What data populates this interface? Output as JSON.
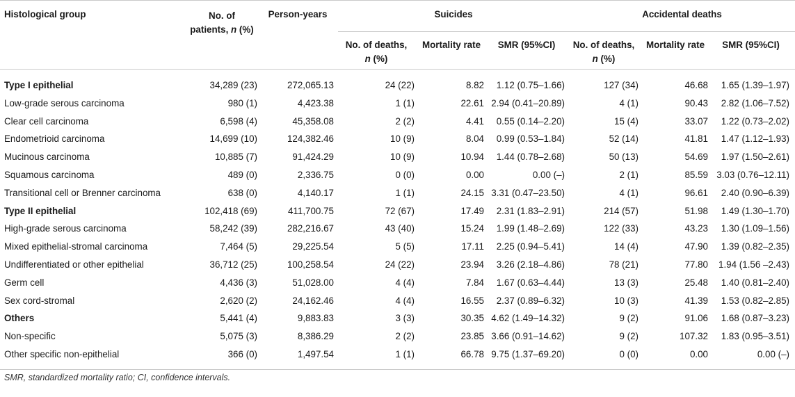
{
  "headers": {
    "group": "Histological group",
    "patients_line1": "No. of",
    "patients_line2a": "patients, ",
    "patients_line2b": "n",
    "patients_line2c": " (%)",
    "person_years": "Person-years",
    "suicides": "Suicides",
    "accidental": "Accidental deaths",
    "deaths_line1": "No. of deaths,",
    "deaths_line2a": "n",
    "deaths_line2b": " (%)",
    "rate": "Mortality rate",
    "smr": "SMR (95%CI)"
  },
  "rows": [
    {
      "group": "Type I epithelial",
      "bold": true,
      "patients": "34,289 (23)",
      "person_years": "272,065.13",
      "s_deaths": "24 (22)",
      "s_rate": "8.82",
      "s_smr": "1.12 (0.75–1.66)",
      "a_deaths": "127 (34)",
      "a_rate": "46.68",
      "a_smr": "1.65 (1.39–1.97)"
    },
    {
      "group": "Low-grade serous carcinoma",
      "bold": false,
      "patients": "980 (1)",
      "person_years": "4,423.38",
      "s_deaths": "1 (1)",
      "s_rate": "22.61",
      "s_smr": "2.94 (0.41–20.89)",
      "a_deaths": "4 (1)",
      "a_rate": "90.43",
      "a_smr": "2.82 (1.06–7.52)"
    },
    {
      "group": "Clear cell carcinoma",
      "bold": false,
      "patients": "6,598 (4)",
      "person_years": "45,358.08",
      "s_deaths": "2 (2)",
      "s_rate": "4.41",
      "s_smr": "0.55 (0.14–2.20)",
      "a_deaths": "15 (4)",
      "a_rate": "33.07",
      "a_smr": "1.22 (0.73–2.02)"
    },
    {
      "group": "Endometrioid carcinoma",
      "bold": false,
      "patients": "14,699 (10)",
      "person_years": "124,382.46",
      "s_deaths": "10 (9)",
      "s_rate": "8.04",
      "s_smr": "0.99 (0.53–1.84)",
      "a_deaths": "52 (14)",
      "a_rate": "41.81",
      "a_smr": "1.47 (1.12–1.93)"
    },
    {
      "group": "Mucinous carcinoma",
      "bold": false,
      "patients": "10,885 (7)",
      "person_years": "91,424.29",
      "s_deaths": "10 (9)",
      "s_rate": "10.94",
      "s_smr": "1.44 (0.78–2.68)",
      "a_deaths": "50 (13)",
      "a_rate": "54.69",
      "a_smr": "1.97 (1.50–2.61)"
    },
    {
      "group": "Squamous carcinoma",
      "bold": false,
      "patients": "489 (0)",
      "person_years": "2,336.75",
      "s_deaths": "0 (0)",
      "s_rate": "0.00",
      "s_smr": "0.00 (–)",
      "a_deaths": "2 (1)",
      "a_rate": "85.59",
      "a_smr": "3.03 (0.76–12.11)"
    },
    {
      "group": "Transitional cell or Brenner carcinoma",
      "bold": false,
      "patients": "638 (0)",
      "person_years": "4,140.17",
      "s_deaths": "1 (1)",
      "s_rate": "24.15",
      "s_smr": "3.31 (0.47–23.50)",
      "a_deaths": "4 (1)",
      "a_rate": "96.61",
      "a_smr": "2.40 (0.90–6.39)"
    },
    {
      "group": "Type II epithelial",
      "bold": true,
      "patients": "102,418 (69)",
      "person_years": "411,700.75",
      "s_deaths": "72 (67)",
      "s_rate": "17.49",
      "s_smr": "2.31 (1.83–2.91)",
      "a_deaths": "214 (57)",
      "a_rate": "51.98",
      "a_smr": "1.49 (1.30–1.70)"
    },
    {
      "group": "High-grade serous carcinoma",
      "bold": false,
      "patients": "58,242 (39)",
      "person_years": "282,216.67",
      "s_deaths": "43 (40)",
      "s_rate": "15.24",
      "s_smr": "1.99 (1.48–2.69)",
      "a_deaths": "122 (33)",
      "a_rate": "43.23",
      "a_smr": "1.30 (1.09–1.56)"
    },
    {
      "group": "Mixed epithelial-stromal carcinoma",
      "bold": false,
      "patients": "7,464 (5)",
      "person_years": "29,225.54",
      "s_deaths": "5 (5)",
      "s_rate": "17.11",
      "s_smr": "2.25 (0.94–5.41)",
      "a_deaths": "14 (4)",
      "a_rate": "47.90",
      "a_smr": "1.39 (0.82–2.35)"
    },
    {
      "group": "Undifferentiated or other epithelial",
      "bold": false,
      "patients": "36,712 (25)",
      "person_years": "100,258.54",
      "s_deaths": "24 (22)",
      "s_rate": "23.94",
      "s_smr": "3.26 (2.18–4.86)",
      "a_deaths": "78 (21)",
      "a_rate": "77.80",
      "a_smr": "1.94 (1.56 –2.43)"
    },
    {
      "group": "Germ cell",
      "bold": false,
      "patients": "4,436 (3)",
      "person_years": "51,028.00",
      "s_deaths": "4 (4)",
      "s_rate": "7.84",
      "s_smr": "1.67 (0.63–4.44)",
      "a_deaths": "13 (3)",
      "a_rate": "25.48",
      "a_smr": "1.40 (0.81–2.40)"
    },
    {
      "group": "Sex cord-stromal",
      "bold": false,
      "patients": "2,620 (2)",
      "person_years": "24,162.46",
      "s_deaths": "4 (4)",
      "s_rate": "16.55",
      "s_smr": "2.37 (0.89–6.32)",
      "a_deaths": "10 (3)",
      "a_rate": "41.39",
      "a_smr": "1.53 (0.82–2.85)"
    },
    {
      "group": "Others",
      "bold": true,
      "patients": "5,441 (4)",
      "person_years": "9,883.83",
      "s_deaths": "3 (3)",
      "s_rate": "30.35",
      "s_smr": "4.62 (1.49–14.32)",
      "a_deaths": "9 (2)",
      "a_rate": "91.06",
      "a_smr": "1.68 (0.87–3.23)"
    },
    {
      "group": "Non-specific",
      "bold": false,
      "patients": "5,075 (3)",
      "person_years": "8,386.29",
      "s_deaths": "2 (2)",
      "s_rate": "23.85",
      "s_smr": "3.66 (0.91–14.62)",
      "a_deaths": "9 (2)",
      "a_rate": "107.32",
      "a_smr": "1.83 (0.95–3.51)"
    },
    {
      "group": "Other specific non-epithelial",
      "bold": false,
      "patients": "366 (0)",
      "person_years": "1,497.54",
      "s_deaths": "1 (1)",
      "s_rate": "66.78",
      "s_smr": "9.75 (1.37–69.20)",
      "a_deaths": "0 (0)",
      "a_rate": "0.00",
      "a_smr": "0.00 (–)"
    }
  ],
  "footnote": "SMR, standardized mortality ratio; CI, confidence intervals."
}
